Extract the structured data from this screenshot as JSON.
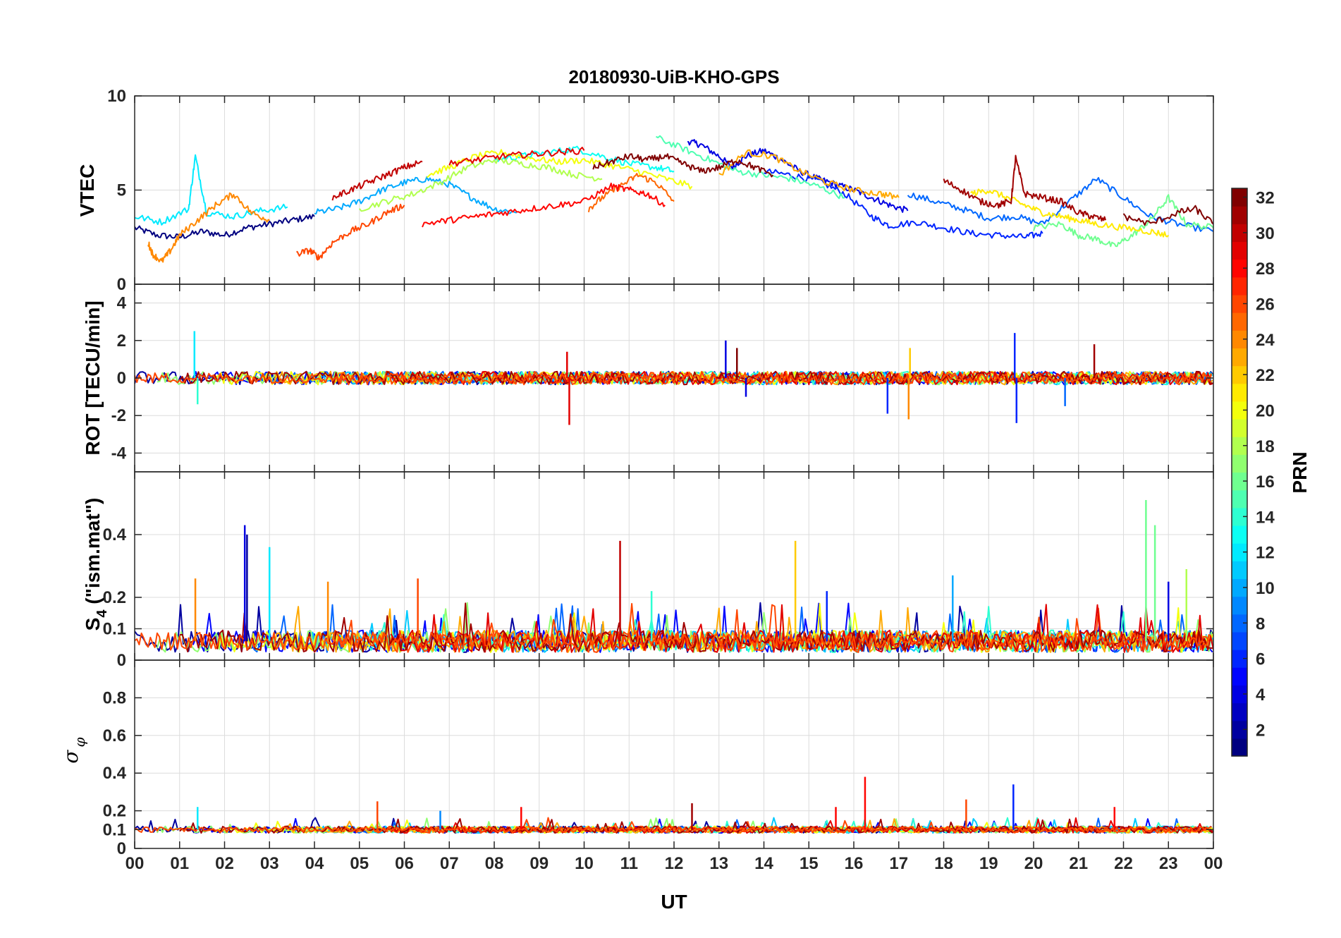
{
  "chart_data": {
    "type": "line",
    "title": "20180930-UiB-KHO-GPS",
    "xlabel": "UT",
    "x_ticks": [
      "00",
      "01",
      "02",
      "03",
      "04",
      "05",
      "06",
      "07",
      "08",
      "09",
      "10",
      "11",
      "12",
      "13",
      "14",
      "15",
      "16",
      "17",
      "18",
      "19",
      "20",
      "21",
      "22",
      "23",
      "00"
    ],
    "xlim": [
      0,
      24
    ],
    "colorbar": {
      "label": "PRN",
      "colormap": "jet",
      "range": [
        1,
        32
      ],
      "ticks": [
        "2",
        "4",
        "6",
        "8",
        "10",
        "12",
        "14",
        "16",
        "18",
        "20",
        "22",
        "24",
        "26",
        "28",
        "30",
        "32"
      ]
    },
    "panels": [
      {
        "id": "vtec",
        "ylabel": "VTEC",
        "ylim": [
          0,
          10
        ],
        "y_ticks": [
          "0",
          "5",
          "10"
        ],
        "y_tick_values": [
          0,
          5,
          10
        ],
        "series": [
          {
            "prn": 1,
            "x": [
              0.0,
              0.5,
              1.0,
              1.5,
              2.0,
              2.5,
              3.0,
              3.5,
              4.0
            ],
            "y": [
              3.0,
              2.6,
              2.5,
              2.8,
              2.6,
              3.0,
              3.2,
              3.4,
              3.6
            ]
          },
          {
            "prn": 4,
            "x": [
              12.3,
              12.6,
              13.0,
              13.3,
              13.6,
              14.0,
              14.4,
              14.8,
              15.2,
              15.6,
              16.0,
              16.4,
              16.8,
              17.2
            ],
            "y": [
              7.6,
              7.4,
              6.8,
              6.2,
              6.8,
              7.1,
              6.6,
              6.0,
              5.6,
              5.3,
              5.0,
              4.6,
              4.2,
              3.9
            ]
          },
          {
            "prn": 6,
            "x": [
              14.0,
              14.6,
              15.2,
              15.8,
              16.4,
              16.8,
              17.4,
              18.0,
              18.6,
              19.2,
              19.8,
              20.2
            ],
            "y": [
              6.0,
              5.8,
              5.5,
              4.8,
              3.6,
              3.1,
              3.3,
              3.0,
              2.7,
              2.6,
              2.5,
              2.7
            ]
          },
          {
            "prn": 8,
            "x": [
              17.2,
              17.8,
              18.4,
              19.0,
              19.6,
              20.2,
              20.8,
              21.4,
              22.0,
              22.6,
              23.2,
              24.0
            ],
            "y": [
              4.8,
              4.4,
              4.0,
              3.5,
              3.6,
              3.2,
              4.4,
              5.6,
              4.6,
              3.6,
              3.2,
              2.8
            ]
          },
          {
            "prn": 10,
            "x": [
              4.0,
              4.5,
              5.0,
              5.5,
              6.0,
              6.5,
              7.0,
              7.5,
              8.0,
              8.5
            ],
            "y": [
              3.8,
              4.0,
              4.4,
              5.0,
              5.4,
              5.6,
              5.3,
              4.6,
              4.0,
              3.8
            ]
          },
          {
            "prn": 12,
            "x": [
              0.0,
              0.6,
              1.2,
              1.35,
              1.6,
              2.2,
              2.8,
              3.4
            ],
            "y": [
              3.6,
              3.3,
              4.0,
              6.8,
              3.8,
              3.6,
              3.9,
              4.1
            ]
          },
          {
            "prn": 13,
            "x": [
              8.0,
              8.6,
              9.2,
              9.8,
              10.4,
              11.0,
              11.6,
              12.0
            ],
            "y": [
              6.6,
              6.8,
              7.0,
              7.2,
              6.8,
              6.4,
              6.2,
              6.0
            ]
          },
          {
            "prn": 15,
            "x": [
              11.6,
              12.2,
              12.8,
              13.4,
              14.0,
              14.6,
              15.2,
              15.8
            ],
            "y": [
              7.8,
              7.2,
              6.6,
              6.0,
              5.8,
              5.6,
              5.2,
              4.6
            ]
          },
          {
            "prn": 16,
            "x": [
              20.0,
              20.6,
              21.0,
              21.4,
              21.8,
              22.2,
              22.6,
              23.0,
              23.4,
              24.0
            ],
            "y": [
              3.0,
              3.2,
              2.6,
              2.4,
              2.0,
              2.6,
              3.4,
              4.6,
              3.2,
              3.0
            ]
          },
          {
            "prn": 18,
            "x": [
              5.0,
              5.6,
              6.2,
              6.8,
              7.4,
              8.0,
              8.6,
              9.2,
              9.8,
              10.4
            ],
            "y": [
              4.0,
              4.4,
              4.8,
              5.4,
              6.2,
              6.6,
              6.4,
              6.2,
              5.8,
              5.6
            ]
          },
          {
            "prn": 20,
            "x": [
              6.5,
              7.0,
              7.6,
              8.2,
              8.8,
              9.4,
              10.0,
              10.6,
              11.2,
              11.8,
              12.4
            ],
            "y": [
              5.8,
              6.2,
              6.8,
              7.0,
              6.7,
              6.5,
              6.6,
              6.3,
              6.0,
              5.6,
              5.2
            ]
          },
          {
            "prn": 21,
            "x": [
              18.6,
              19.0,
              19.4,
              19.8,
              20.2,
              20.6,
              21.0,
              21.4,
              22.0,
              22.6,
              23.0
            ],
            "y": [
              4.8,
              5.0,
              4.6,
              4.2,
              3.8,
              3.6,
              3.4,
              3.2,
              3.0,
              2.8,
              2.6
            ]
          },
          {
            "prn": 23,
            "x": [
              13.0,
              13.6,
              14.2,
              14.8,
              15.4,
              16.0,
              16.6,
              17.0
            ],
            "y": [
              5.8,
              7.0,
              6.8,
              6.0,
              5.4,
              5.0,
              4.8,
              4.6
            ]
          },
          {
            "prn": 24,
            "x": [
              0.3,
              0.4,
              0.6,
              0.8,
              1.0,
              1.4,
              1.8,
              2.2,
              2.6,
              3.0
            ],
            "y": [
              2.2,
              1.6,
              1.2,
              1.8,
              2.6,
              3.4,
              4.2,
              4.8,
              3.8,
              3.4
            ]
          },
          {
            "prn": 25,
            "x": [
              10.1,
              10.4,
              10.8,
              11.2,
              11.6,
              12.0
            ],
            "y": [
              4.0,
              4.6,
              5.2,
              5.8,
              5.4,
              4.4
            ]
          },
          {
            "prn": 26,
            "x": [
              3.6,
              3.9,
              4.1,
              4.4,
              4.8,
              5.2,
              5.6,
              6.0
            ],
            "y": [
              1.6,
              1.8,
              1.4,
              2.2,
              2.8,
              3.2,
              3.8,
              4.2
            ]
          },
          {
            "prn": 28,
            "x": [
              6.4,
              7.0,
              7.6,
              8.2,
              8.8,
              9.4,
              10.0,
              10.6,
              11.0,
              11.4,
              11.8
            ],
            "y": [
              3.2,
              3.4,
              3.6,
              3.8,
              4.0,
              4.2,
              4.4,
              5.2,
              5.0,
              4.8,
              4.2
            ]
          },
          {
            "prn": 29,
            "x": [
              7.0,
              7.6,
              8.2,
              8.8,
              9.4,
              10.0
            ],
            "y": [
              6.4,
              6.6,
              6.8,
              6.9,
              7.0,
              7.1
            ]
          },
          {
            "prn": 30,
            "x": [
              4.4,
              4.8,
              5.2,
              5.6,
              6.0,
              6.4
            ],
            "y": [
              4.6,
              5.0,
              5.4,
              5.8,
              6.2,
              6.5
            ]
          },
          {
            "prn": 31,
            "x": [
              18.0,
              18.4,
              18.8,
              19.2,
              19.5,
              19.6,
              19.8,
              20.2,
              20.6,
              21.0,
              21.3,
              21.6
            ],
            "y": [
              5.5,
              5.0,
              4.4,
              4.2,
              4.4,
              6.7,
              4.8,
              4.6,
              4.4,
              3.8,
              3.6,
              3.4
            ]
          },
          {
            "prn": 32,
            "x": [
              10.2,
              10.6,
              11.0,
              11.4,
              11.8,
              12.2,
              12.6,
              13.0,
              13.4,
              13.8,
              14.2
            ],
            "y": [
              6.2,
              6.5,
              6.8,
              6.6,
              6.8,
              6.4,
              6.0,
              6.2,
              6.6,
              6.2,
              5.8
            ]
          },
          {
            "prn": 32,
            "x": [
              22.0,
              22.6,
              23.2,
              23.6,
              24.0
            ],
            "y": [
              3.6,
              3.2,
              3.8,
              4.0,
              3.2
            ]
          }
        ]
      },
      {
        "id": "rot",
        "ylabel": "ROT [TECU/min]",
        "ylim": [
          -5,
          5
        ],
        "y_ticks": [
          "-4",
          "-2",
          "0",
          "2",
          "4"
        ],
        "y_tick_values": [
          -4,
          -2,
          0,
          2,
          4
        ],
        "spikes": [
          {
            "prn": 12,
            "x": 1.33,
            "y": 2.5
          },
          {
            "prn": 14,
            "x": 1.4,
            "y": -1.4
          },
          {
            "prn": 29,
            "x": 9.62,
            "y": 1.4
          },
          {
            "prn": 29,
            "x": 9.67,
            "y": -2.5
          },
          {
            "prn": 4,
            "x": 13.15,
            "y": 2.0
          },
          {
            "prn": 32,
            "x": 13.4,
            "y": 1.6
          },
          {
            "prn": 4,
            "x": 13.6,
            "y": -1.0
          },
          {
            "prn": 6,
            "x": 16.75,
            "y": -1.9
          },
          {
            "prn": 22,
            "x": 17.25,
            "y": 1.6
          },
          {
            "prn": 24,
            "x": 17.22,
            "y": -2.2
          },
          {
            "prn": 6,
            "x": 19.58,
            "y": 2.4
          },
          {
            "prn": 6,
            "x": 19.62,
            "y": -2.4
          },
          {
            "prn": 31,
            "x": 21.35,
            "y": 1.8
          },
          {
            "prn": 8,
            "x": 20.7,
            "y": -1.5
          }
        ]
      },
      {
        "id": "s4",
        "ylabel": "S4 (\"ism.mat\")",
        "ylim": [
          0,
          0.6
        ],
        "y_ticks": [
          "0",
          "0.1",
          "0.2",
          "0.4"
        ],
        "y_tick_values": [
          0,
          0.1,
          0.2,
          0.4
        ],
        "spikes": [
          {
            "prn": 4,
            "x": 2.45,
            "y": 0.43
          },
          {
            "prn": 2,
            "x": 2.5,
            "y": 0.4
          },
          {
            "prn": 12,
            "x": 3.0,
            "y": 0.36
          },
          {
            "prn": 24,
            "x": 1.35,
            "y": 0.26
          },
          {
            "prn": 24,
            "x": 4.3,
            "y": 0.25
          },
          {
            "prn": 26,
            "x": 6.3,
            "y": 0.26
          },
          {
            "prn": 30,
            "x": 10.8,
            "y": 0.38
          },
          {
            "prn": 22,
            "x": 14.7,
            "y": 0.38
          },
          {
            "prn": 6,
            "x": 15.4,
            "y": 0.22
          },
          {
            "prn": 10,
            "x": 18.2,
            "y": 0.27
          },
          {
            "prn": 16,
            "x": 22.5,
            "y": 0.51
          },
          {
            "prn": 16,
            "x": 22.7,
            "y": 0.43
          },
          {
            "prn": 18,
            "x": 23.4,
            "y": 0.29
          },
          {
            "prn": 14,
            "x": 11.5,
            "y": 0.22
          },
          {
            "prn": 4,
            "x": 23.0,
            "y": 0.25
          }
        ]
      },
      {
        "id": "sigma_phi",
        "ylabel": "σφ",
        "ylim": [
          0,
          1
        ],
        "y_ticks": [
          "0",
          "0.1",
          "0.2",
          "0.4",
          "0.6",
          "0.8"
        ],
        "y_tick_values": [
          0,
          0.1,
          0.2,
          0.4,
          0.6,
          0.8
        ],
        "spikes": [
          {
            "prn": 28,
            "x": 16.25,
            "y": 0.38
          },
          {
            "prn": 6,
            "x": 19.55,
            "y": 0.34
          },
          {
            "prn": 26,
            "x": 5.4,
            "y": 0.25
          },
          {
            "prn": 31,
            "x": 12.4,
            "y": 0.24
          },
          {
            "prn": 28,
            "x": 8.6,
            "y": 0.22
          },
          {
            "prn": 26,
            "x": 18.5,
            "y": 0.26
          },
          {
            "prn": 28,
            "x": 15.6,
            "y": 0.22
          },
          {
            "prn": 12,
            "x": 1.4,
            "y": 0.22
          },
          {
            "prn": 9,
            "x": 6.8,
            "y": 0.2
          },
          {
            "prn": 28,
            "x": 21.8,
            "y": 0.22
          }
        ]
      }
    ]
  }
}
